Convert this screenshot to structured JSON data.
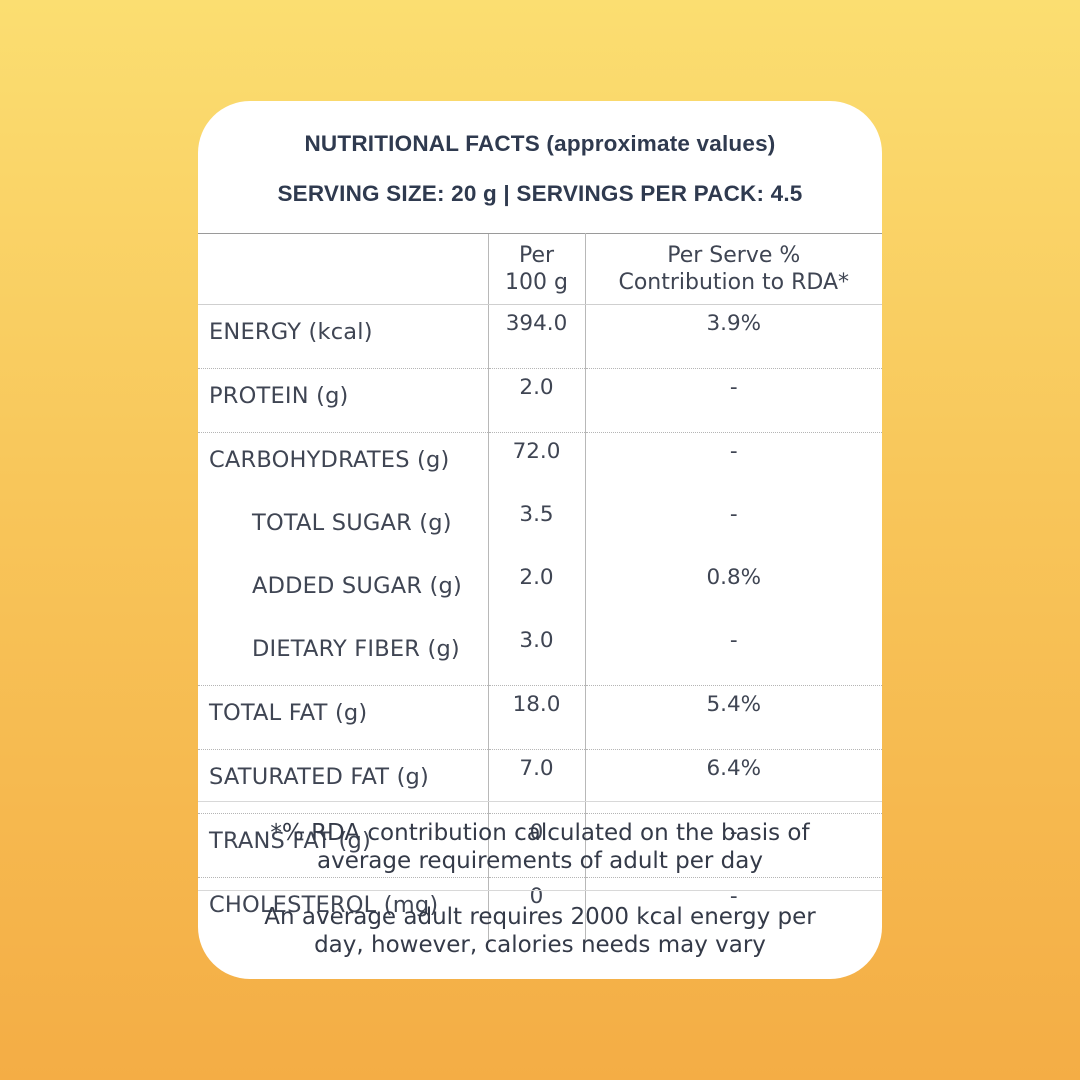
{
  "header": {
    "title": "NUTRITIONAL FACTS (approximate values)",
    "serving": "SERVING SIZE: 20 g | SERVINGS PER PACK: 4.5"
  },
  "table": {
    "columns": [
      "",
      "Per 100 g",
      "Per Serve % Contribution to RDA*"
    ],
    "col2_line1": "Per",
    "col2_line2": "100 g",
    "col3_line1": "Per Serve %",
    "col3_line2": "Contribution to RDA*",
    "rows": [
      {
        "name": "ENERGY (kcal)",
        "per100": "394.0",
        "rda": "3.9%"
      },
      {
        "name": "PROTEIN (g)",
        "per100": "2.0",
        "rda": "-"
      },
      {
        "name": "CARBOHYDRATES (g)",
        "per100": "72.0",
        "rda": "-"
      },
      {
        "name": "TOTAL  SUGAR (g)",
        "per100": "3.5",
        "rda": "-"
      },
      {
        "name": "ADDED SUGAR (g)",
        "per100": "2.0",
        "rda": "0.8%"
      },
      {
        "name": "DIETARY FIBER (g)",
        "per100": "3.0",
        "rda": "-"
      },
      {
        "name": "TOTAL FAT (g)",
        "per100": "18.0",
        "rda": "5.4%"
      },
      {
        "name": "SATURATED FAT (g)",
        "per100": "7.0",
        "rda": "6.4%"
      },
      {
        "name": "TRANS FAT (g)",
        "per100": "0",
        "rda": "-"
      },
      {
        "name": "CHOLESTEROL (mg)",
        "per100": "0",
        "rda": "-"
      }
    ]
  },
  "notes": {
    "rda_line1": "*% RDA contribution calculated on the basis of",
    "rda_line2": "average requirements of adult per day",
    "energy_line1": "An average adult requires 2000 kcal energy per",
    "energy_line2": "day, however, calories needs may vary"
  },
  "colors": {
    "background_top": "#fbde71",
    "background_bottom": "#f4ad45",
    "card": "#ffffff",
    "text": "#2f3a4f"
  }
}
